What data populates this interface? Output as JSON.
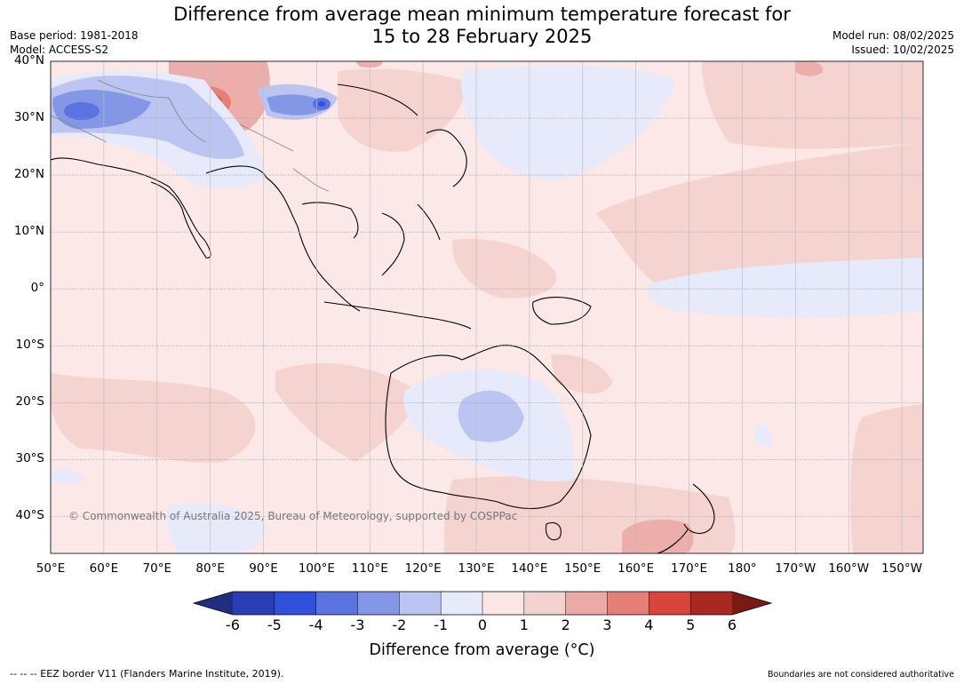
{
  "title": {
    "line1": "Difference from average mean minimum temperature forecast for",
    "line2": "15 to 28 February 2025"
  },
  "meta": {
    "base_period": "Base period: 1981-2018",
    "model": "Model: ACCESS-S2",
    "model_run": "Model run: 08/02/2025",
    "issued": "Issued: 10/02/2025"
  },
  "map": {
    "extent": {
      "lon_min": 50,
      "lon_max": 214,
      "lat_min": -46.5,
      "lat_max": 40
    },
    "lat_ticks": [
      {
        "value": 40,
        "label": "40°N"
      },
      {
        "value": 30,
        "label": "30°N"
      },
      {
        "value": 20,
        "label": "20°N"
      },
      {
        "value": 10,
        "label": "10°N"
      },
      {
        "value": 0,
        "label": "0°"
      },
      {
        "value": -10,
        "label": "10°S"
      },
      {
        "value": -20,
        "label": "20°S"
      },
      {
        "value": -30,
        "label": "30°S"
      },
      {
        "value": -40,
        "label": "40°S"
      }
    ],
    "lon_ticks": [
      {
        "value": 50,
        "label": "50°E"
      },
      {
        "value": 60,
        "label": "60°E"
      },
      {
        "value": 70,
        "label": "70°E"
      },
      {
        "value": 80,
        "label": "80°E"
      },
      {
        "value": 90,
        "label": "90°E"
      },
      {
        "value": 100,
        "label": "100°E"
      },
      {
        "value": 110,
        "label": "110°E"
      },
      {
        "value": 120,
        "label": "120°E"
      },
      {
        "value": 130,
        "label": "130°E"
      },
      {
        "value": 140,
        "label": "140°E"
      },
      {
        "value": 150,
        "label": "150°E"
      },
      {
        "value": 160,
        "label": "160°E"
      },
      {
        "value": 170,
        "label": "170°E"
      },
      {
        "value": 180,
        "label": "180°"
      },
      {
        "value": 190,
        "label": "170°W"
      },
      {
        "value": 200,
        "label": "160°W"
      },
      {
        "value": 210,
        "label": "150°W"
      }
    ],
    "copyright": "© Commonwealth of Australia 2025, Bureau of Meteorology, supported by COSPPac"
  },
  "colorbar": {
    "ticks": [
      "-6",
      "-5",
      "-4",
      "-3",
      "-2",
      "-1",
      "0",
      "1",
      "2",
      "3",
      "4",
      "5",
      "6"
    ],
    "colors": [
      "#1f2f80",
      "#2a3db4",
      "#3050dc",
      "#5a73e0",
      "#8497e6",
      "#bcc5f2",
      "#e6eafa",
      "#fbe6e5",
      "#f4d2d0",
      "#ebaaa6",
      "#e57f77",
      "#d9453a",
      "#a82822",
      "#7a1a15"
    ],
    "label": "Difference from average (°C)"
  },
  "footer": {
    "eez": "--  --  -- EEZ border V11 (Flanders Marine Institute, 2019).",
    "disclaimer": "Boundaries are not considered authoritative"
  }
}
